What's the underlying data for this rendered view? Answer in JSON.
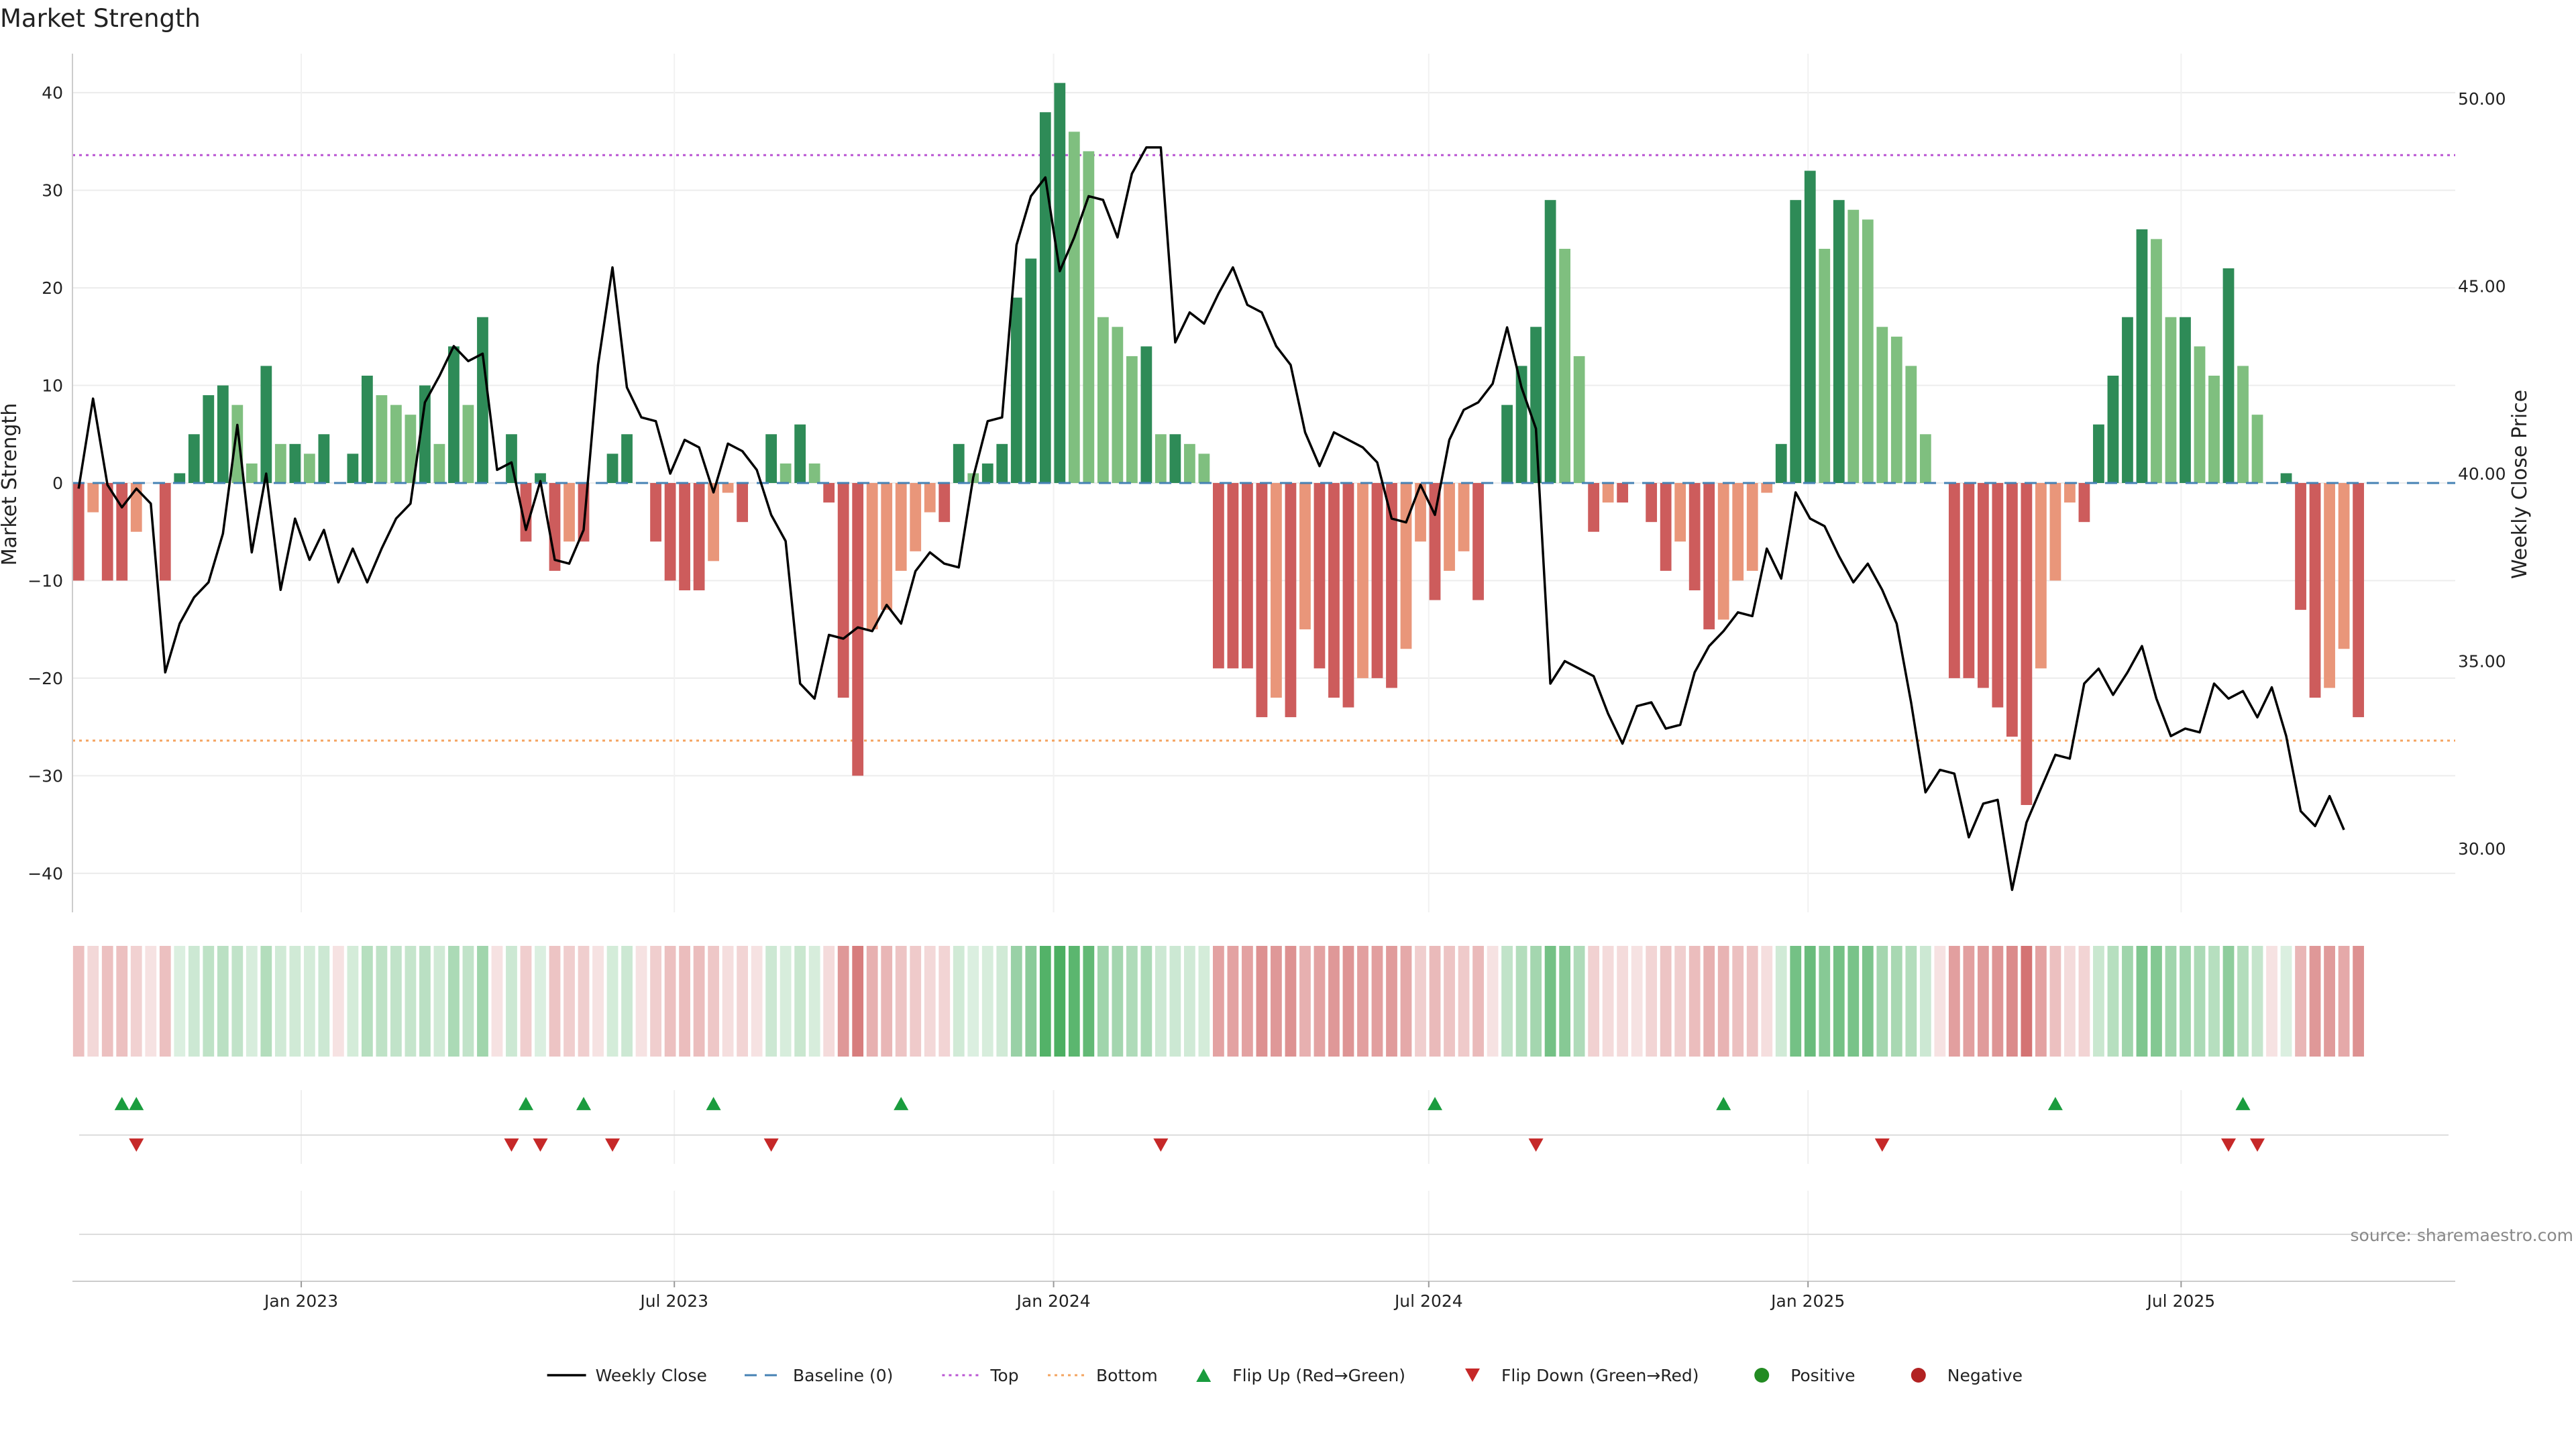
{
  "chart_data": {
    "type": "bar",
    "title": "Market Strength",
    "ylabel": "Market Strength",
    "y2label": "Weekly Close Price",
    "ylim": [
      -44,
      44
    ],
    "y2lim": [
      28.3,
      51.2
    ],
    "yticks": [
      40,
      30,
      20,
      10,
      0,
      -10,
      -20,
      -30,
      -40
    ],
    "y2ticks": [
      "50.00",
      "45.00",
      "40.00",
      "35.00",
      "30.00"
    ],
    "x_axis": {
      "type": "date",
      "start": "2022-09-12",
      "end": "2025-11-11",
      "ticks": [
        {
          "date": "2023-01-01",
          "label": "Jan 2023"
        },
        {
          "date": "2023-07-01",
          "label": "Jul 2023"
        },
        {
          "date": "2024-01-01",
          "label": "Jan 2024"
        },
        {
          "date": "2024-07-01",
          "label": "Jul 2024"
        },
        {
          "date": "2025-01-01",
          "label": "Jan 2025"
        },
        {
          "date": "2025-07-01",
          "label": "Jul 2025"
        }
      ]
    },
    "first_week": "2022-09-15",
    "week_days": 7,
    "top_threshold": 33.6,
    "bottom_threshold": -26.4,
    "baseline": 0,
    "grid": true,
    "legend_position": "bottom",
    "strength": [
      -10,
      -3,
      -10,
      -10,
      -5,
      0,
      -10,
      1,
      5,
      9,
      10,
      8,
      2,
      12,
      4,
      4,
      3,
      5,
      0,
      3,
      11,
      9,
      8,
      7,
      10,
      4,
      14,
      8,
      17,
      0,
      5,
      -6,
      1,
      -9,
      -6,
      -6,
      0,
      3,
      5,
      0,
      -6,
      -10,
      -11,
      -11,
      -8,
      -1,
      -4,
      0,
      5,
      2,
      6,
      2,
      -2,
      -22,
      -30,
      -15,
      -13,
      -9,
      -7,
      -3,
      -4,
      4,
      1,
      2,
      4,
      19,
      23,
      38,
      41,
      36,
      34,
      17,
      16,
      13,
      14,
      5,
      5,
      4,
      3,
      -19,
      -19,
      -19,
      -24,
      -22,
      -24,
      -15,
      -19,
      -22,
      -23,
      -20,
      -20,
      -21,
      -17,
      -6,
      -12,
      -9,
      -7,
      -12,
      0,
      8,
      12,
      16,
      29,
      24,
      13,
      -5,
      -2,
      -2,
      0,
      -4,
      -9,
      -6,
      -11,
      -15,
      -14,
      -10,
      -9,
      -1,
      4,
      29,
      32,
      24,
      29,
      28,
      27,
      16,
      15,
      12,
      5,
      0,
      -20,
      -20,
      -21,
      -23,
      -26,
      -33,
      -19,
      -10,
      -2,
      -4,
      6,
      11,
      17,
      26,
      25,
      17,
      17,
      14,
      11,
      22,
      12,
      7,
      0,
      1,
      -13,
      -22,
      -21,
      -17,
      -24
    ],
    "weekly_close": [
      39.6,
      42.0,
      39.7,
      39.1,
      39.6,
      39.2,
      34.7,
      36.0,
      36.7,
      37.1,
      38.4,
      41.3,
      37.9,
      40.0,
      36.9,
      38.8,
      37.7,
      38.5,
      37.1,
      38.0,
      37.1,
      38.0,
      38.8,
      39.2,
      41.9,
      42.6,
      43.4,
      43.0,
      43.2,
      40.1,
      40.3,
      38.5,
      39.8,
      37.7,
      37.6,
      38.5,
      42.9,
      45.5,
      42.3,
      41.5,
      41.4,
      40.0,
      40.9,
      40.7,
      39.5,
      40.8,
      40.6,
      40.1,
      38.9,
      38.2,
      34.4,
      34.0,
      35.7,
      35.6,
      35.9,
      35.8,
      36.5,
      36.0,
      37.4,
      37.9,
      37.6,
      37.5,
      39.9,
      41.4,
      41.5,
      46.1,
      47.4,
      47.9,
      45.4,
      46.3,
      47.4,
      47.3,
      46.3,
      48.0,
      48.7,
      48.7,
      43.5,
      44.3,
      44.0,
      44.8,
      45.5,
      44.5,
      44.3,
      43.4,
      42.9,
      41.1,
      40.2,
      41.1,
      40.9,
      40.7,
      40.3,
      38.8,
      38.7,
      39.7,
      38.9,
      40.9,
      41.7,
      41.9,
      42.4,
      43.9,
      42.3,
      41.2,
      34.4,
      35.0,
      34.8,
      34.6,
      33.6,
      32.8,
      33.8,
      33.9,
      33.2,
      33.3,
      34.7,
      35.4,
      35.8,
      36.3,
      36.2,
      38.0,
      37.2,
      39.5,
      38.8,
      38.6,
      37.8,
      37.1,
      37.6,
      36.9,
      36.0,
      33.9,
      31.5,
      32.1,
      32.0,
      30.3,
      31.2,
      31.3,
      28.9,
      30.7,
      31.6,
      32.5,
      32.4,
      34.4,
      34.8,
      34.1,
      34.7,
      35.4,
      34.0,
      33.0,
      33.2,
      33.1,
      34.4,
      34.0,
      34.2,
      33.5,
      34.3,
      33.0,
      31.0,
      30.6,
      31.4,
      30.5
    ],
    "flip_up_weeks": [
      3,
      4,
      31,
      35,
      44,
      57,
      94,
      114,
      137,
      150
    ],
    "flip_down_weeks": [
      4,
      30,
      32,
      37,
      48,
      75,
      101,
      125,
      149,
      151
    ],
    "legend": [
      "Weekly Close",
      "Baseline (0)",
      "Top",
      "Bottom",
      "Flip Up (Red→Green)",
      "Flip Down (Green→Red)",
      "Positive",
      "Negative"
    ],
    "colors": {
      "positive_strong": "#2e8b57",
      "positive_weak": "#7fbf7f",
      "negative_strong": "#cd5c5c",
      "negative_weak": "#e9967a",
      "heat_positive": "#4caf62",
      "heat_negative": "#cd5c5c",
      "top_line": "#ba55d3",
      "bottom_line": "#f4a460",
      "baseline": "#4682b4",
      "close_line": "#000000",
      "flip_up": "#1a9c3e",
      "flip_down": "#c62828",
      "positive_dot": "#228b22",
      "negative_dot": "#b22222"
    }
  },
  "source_text": "source: sharemaestro.com"
}
